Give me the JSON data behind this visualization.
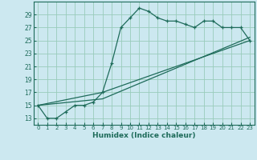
{
  "xlabel": "Humidex (Indice chaleur)",
  "bg_color": "#cce8f0",
  "grid_color": "#99ccbb",
  "line_color": "#1e6b5a",
  "xlim": [
    -0.5,
    23.5
  ],
  "ylim": [
    12,
    31
  ],
  "yticks": [
    13,
    15,
    17,
    19,
    21,
    23,
    25,
    27,
    29
  ],
  "xticks": [
    0,
    1,
    2,
    3,
    4,
    5,
    6,
    7,
    8,
    9,
    10,
    11,
    12,
    13,
    14,
    15,
    16,
    17,
    18,
    19,
    20,
    21,
    22,
    23
  ],
  "series_main": [
    [
      0,
      15
    ],
    [
      1,
      13
    ],
    [
      2,
      13
    ],
    [
      3,
      14
    ],
    [
      4,
      15
    ],
    [
      5,
      15
    ],
    [
      6,
      15.5
    ],
    [
      7,
      17
    ],
    [
      8,
      21.5
    ],
    [
      9,
      27
    ],
    [
      10,
      28.5
    ],
    [
      11,
      30
    ],
    [
      12,
      29.5
    ],
    [
      13,
      28.5
    ],
    [
      14,
      28
    ],
    [
      15,
      28
    ],
    [
      16,
      27.5
    ],
    [
      17,
      27
    ],
    [
      18,
      28
    ],
    [
      19,
      28
    ],
    [
      20,
      27
    ],
    [
      21,
      27
    ],
    [
      22,
      27
    ],
    [
      23,
      25
    ]
  ],
  "series_line1": [
    [
      0,
      15
    ],
    [
      7,
      17
    ],
    [
      23,
      25
    ]
  ],
  "series_line2": [
    [
      0,
      15
    ],
    [
      7,
      16
    ],
    [
      23,
      25.5
    ]
  ]
}
